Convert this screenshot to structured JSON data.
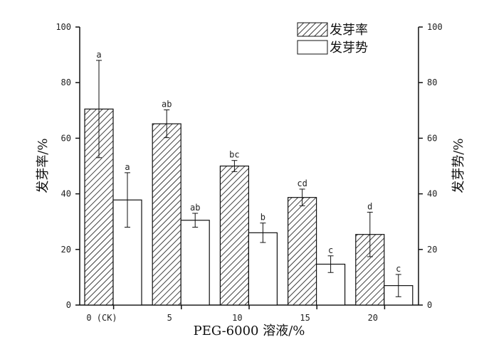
{
  "chart_data": {
    "type": "bar",
    "xlabel": "PEG-6000 溶液/%",
    "ylabel_left": "发芽率/%",
    "ylabel_right": "发芽势/%",
    "ylim": [
      0,
      100
    ],
    "yticks": [
      "0",
      "20",
      "40",
      "60",
      "80",
      "100"
    ],
    "categories": [
      "0 (CK)",
      "5",
      "10",
      "15",
      "20"
    ],
    "legend_position": "top-right",
    "grid": false,
    "series": [
      {
        "name": "发芽率",
        "fill": "hatched",
        "values": [
          70.5,
          65.2,
          50.0,
          38.7,
          25.4
        ],
        "errors": [
          17.5,
          5.0,
          2.0,
          3.0,
          8.0
        ],
        "letters": [
          "a",
          "ab",
          "bc",
          "cd",
          "d"
        ]
      },
      {
        "name": "发芽势",
        "fill": "white",
        "values": [
          37.8,
          30.5,
          26.0,
          14.7,
          7.0
        ],
        "errors": [
          9.8,
          2.5,
          3.5,
          3.0,
          4.0
        ],
        "letters": [
          "a",
          "ab",
          "b",
          "c",
          "c"
        ]
      }
    ]
  }
}
